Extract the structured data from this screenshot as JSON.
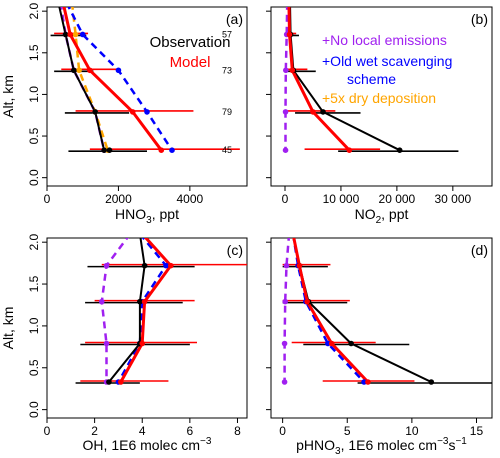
{
  "chart_data": [
    {
      "panel_label": "(a)",
      "type": "line",
      "ylabel": "Alt, km",
      "xlabel_main": "HNO",
      "xlabel_sub": "3",
      "xlabel_tail": ", ppt",
      "xlim": [
        0,
        5600
      ],
      "xticks": [
        0,
        2000,
        4000
      ],
      "xtick_labels": [
        "0",
        "2000",
        "4000"
      ],
      "ylim": [
        -0.1,
        2.05
      ],
      "yticks": [
        0.0,
        0.5,
        1.0,
        1.5,
        2.0
      ],
      "ytick_labels": [
        "0.0",
        "0.5",
        "1.0",
        "1.5",
        "2.0"
      ],
      "legend": [
        {
          "label": "Observation",
          "color": "#000000"
        },
        {
          "label": "Model",
          "color": "#ff0000"
        }
      ],
      "annotations": [
        {
          "text": "57",
          "y": 1.72
        },
        {
          "text": "73",
          "y": 1.29
        },
        {
          "text": "79",
          "y": 0.79
        },
        {
          "text": "45",
          "y": 0.33
        }
      ],
      "series": [
        {
          "role": "obs",
          "color": "#000000",
          "style": "solid",
          "x": [
            320,
            520,
            750,
            1350,
            1600,
            1750
          ],
          "y": [
            2.1,
            1.72,
            1.29,
            0.79,
            0.33,
            0.33
          ],
          "err_low": [
            null,
            100,
            200,
            500,
            600,
            null
          ],
          "err_high": [
            null,
            1100,
            1300,
            2300,
            2800,
            null
          ]
        },
        {
          "role": "model",
          "color": "#ff0000",
          "style": "solid",
          "x": [
            450,
            650,
            1200,
            2400,
            3200
          ],
          "y": [
            2.1,
            1.72,
            1.29,
            0.79,
            0.33
          ],
          "err_low": [
            null,
            200,
            400,
            800,
            1200
          ],
          "err_high": [
            null,
            1150,
            2000,
            4100,
            5400
          ]
        },
        {
          "role": "wet",
          "color": "#0000ff",
          "style": "dashed",
          "x": [
            550,
            1000,
            2000,
            2800,
            3500
          ],
          "y": [
            2.1,
            1.72,
            1.29,
            0.79,
            0.33
          ]
        },
        {
          "role": "dry",
          "color": "#ffa500",
          "style": "dashed",
          "x": [
            700,
            800,
            900,
            1350,
            1700
          ],
          "y": [
            2.1,
            1.72,
            1.29,
            0.79,
            0.33
          ]
        },
        {
          "role": "noemis",
          "color": "#a020f0",
          "style": "dashed",
          "x": [
            380,
            520,
            750,
            1350,
            1600
          ],
          "y": [
            2.1,
            1.72,
            1.29,
            0.79,
            0.33
          ]
        }
      ]
    },
    {
      "panel_label": "(b)",
      "type": "line",
      "xlabel_main": "NO",
      "xlabel_sub": "2",
      "xlabel_tail": ", ppt",
      "xlim": [
        -2500,
        37000
      ],
      "xticks": [
        0,
        10000,
        20000,
        30000
      ],
      "xtick_labels": [
        "0",
        "10 000",
        "20 000",
        "30 000"
      ],
      "ylim": [
        -0.1,
        2.05
      ],
      "yticks": [
        0.0,
        0.5,
        1.0,
        1.5,
        2.0
      ],
      "legend": [
        {
          "label": "+No local emissions",
          "color": "#a020f0"
        },
        {
          "label": "+Old wet scavenging",
          "color": "#0000ff"
        },
        {
          "label": "scheme",
          "color": "#0000ff"
        },
        {
          "label": "+5x dry deposition",
          "color": "#ffa500"
        }
      ],
      "series": [
        {
          "role": "obs",
          "color": "#000000",
          "style": "solid",
          "x": [
            900,
            1000,
            1500,
            6800,
            20500
          ],
          "y": [
            2.1,
            1.72,
            1.29,
            0.79,
            0.33
          ],
          "err_low": [
            null,
            0,
            200,
            1800,
            9500
          ],
          "err_high": [
            null,
            2500,
            5500,
            13500,
            31000
          ]
        },
        {
          "role": "model",
          "color": "#ff0000",
          "style": "solid",
          "x": [
            700,
            800,
            1300,
            5000,
            11500
          ],
          "y": [
            2.1,
            1.72,
            1.29,
            0.79,
            0.33
          ],
          "err_low": [
            null,
            0,
            0,
            0,
            3500
          ],
          "err_high": [
            null,
            2000,
            4000,
            9000,
            17000
          ]
        },
        {
          "role": "noemis",
          "color": "#a020f0",
          "style": "dashed",
          "x": [
            400,
            300,
            150,
            100,
            100
          ],
          "y": [
            2.1,
            1.72,
            1.29,
            0.79,
            0.33
          ]
        }
      ]
    },
    {
      "panel_label": "(c)",
      "type": "line",
      "ylabel": "Alt, km",
      "xlabel_main": "OH, 1E6 molec cm",
      "xlabel_sup": "−3",
      "xlim": [
        0,
        8.4
      ],
      "xticks": [
        0,
        2,
        4,
        6,
        8
      ],
      "xtick_labels": [
        "0",
        "2",
        "4",
        "6",
        "8"
      ],
      "ylim": [
        -0.1,
        2.05
      ],
      "yticks": [
        0.0,
        0.5,
        1.0,
        1.5,
        2.0
      ],
      "ytick_labels": [
        "0.0",
        "0.5",
        "1.0",
        "1.5",
        "2.0"
      ],
      "series": [
        {
          "role": "obs",
          "color": "#000000",
          "style": "solid",
          "x": [
            3.9,
            4.1,
            3.9,
            3.9,
            2.6
          ],
          "y": [
            2.1,
            1.72,
            1.29,
            0.79,
            0.33
          ],
          "err_low": [
            null,
            1.7,
            1.6,
            1.4,
            1.2
          ],
          "err_high": [
            null,
            6.2,
            5.7,
            6.0,
            3.9
          ]
        },
        {
          "role": "model",
          "color": "#ff0000",
          "style": "solid",
          "x": [
            4.0,
            5.2,
            4.1,
            4.0,
            3.1
          ],
          "y": [
            2.1,
            1.72,
            1.29,
            0.79,
            0.33
          ],
          "err_low": [
            null,
            2.3,
            2.0,
            1.6,
            1.4
          ],
          "err_high": [
            null,
            8.5,
            6.2,
            6.3,
            5.1
          ]
        },
        {
          "role": "wet",
          "color": "#0000ff",
          "style": "dashed",
          "x": [
            3.9,
            5.0,
            4.0,
            3.9,
            3.0
          ],
          "y": [
            2.1,
            1.72,
            1.29,
            0.79,
            0.33
          ]
        },
        {
          "role": "noemis",
          "color": "#a020f0",
          "style": "dashed",
          "x": [
            3.5,
            2.5,
            2.3,
            2.5,
            2.5
          ],
          "y": [
            2.1,
            1.72,
            1.29,
            0.79,
            0.33
          ]
        }
      ]
    },
    {
      "panel_label": "(d)",
      "type": "line",
      "xlabel_main": "pHNO",
      "xlabel_sub": "3",
      "xlabel_tail": ", 1E6 molec cm",
      "xlabel_sup": "−3",
      "xlabel_tail2": "s",
      "xlabel_sup2": "−1",
      "xlim": [
        -0.9,
        16.2
      ],
      "xticks": [
        0,
        5,
        10,
        15
      ],
      "xtick_labels": [
        "0",
        "5",
        "10",
        "15"
      ],
      "ylim": [
        -0.1,
        2.05
      ],
      "yticks": [
        0.0,
        0.5,
        1.0,
        1.5,
        2.0
      ],
      "series": [
        {
          "role": "obs",
          "color": "#000000",
          "style": "solid",
          "x": [
            0.8,
            1.3,
            2.0,
            5.3,
            11.5
          ],
          "y": [
            2.1,
            1.72,
            1.29,
            0.79,
            0.33
          ],
          "err_low": [
            null,
            0.0,
            0.0,
            1.6,
            5.8
          ],
          "err_high": [
            null,
            3.5,
            5.0,
            9.8,
            16.2
          ]
        },
        {
          "role": "model",
          "color": "#ff0000",
          "style": "solid",
          "x": [
            0.8,
            1.3,
            1.9,
            3.8,
            6.6
          ],
          "y": [
            2.1,
            1.72,
            1.29,
            0.79,
            0.33
          ],
          "err_low": [
            null,
            0.0,
            0.0,
            0.7,
            3.1
          ],
          "err_high": [
            null,
            3.7,
            5.2,
            7.2,
            10.2
          ]
        },
        {
          "role": "wet",
          "color": "#0000ff",
          "style": "dashed",
          "x": [
            0.8,
            1.2,
            1.8,
            3.5,
            6.3
          ],
          "y": [
            2.1,
            1.72,
            1.29,
            0.79,
            0.33
          ]
        },
        {
          "role": "noemis",
          "color": "#a020f0",
          "style": "dashed",
          "x": [
            0.5,
            0.3,
            0.2,
            0.15,
            0.15
          ],
          "y": [
            2.1,
            1.72,
            1.29,
            0.79,
            0.33
          ]
        }
      ]
    }
  ]
}
